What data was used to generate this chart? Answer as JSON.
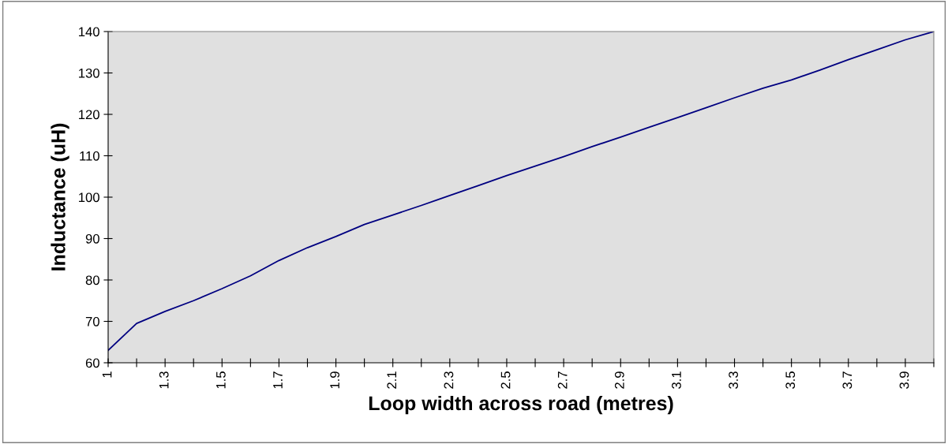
{
  "chart_data": {
    "type": "line",
    "xlabel": "Loop width across road (metres)",
    "ylabel": "Inductance (uH)",
    "categories": [
      "1",
      null,
      "1.3",
      null,
      "1.5",
      null,
      "1.7",
      null,
      "1.9",
      null,
      "2.1",
      null,
      "2.3",
      null,
      "2.5",
      null,
      "2.7",
      null,
      "2.9",
      null,
      "3.1",
      null,
      "3.3",
      null,
      "3.5",
      null,
      "3.7",
      null,
      "3.9",
      null
    ],
    "series": [
      {
        "color": "#000080",
        "values": [
          63,
          69.5,
          72.4,
          75,
          77.9,
          81,
          84.7,
          87.8,
          90.5,
          93.4,
          95.7,
          98,
          100.4,
          102.8,
          105.2,
          107.5,
          109.8,
          112.2,
          114.5,
          116.9,
          119.2,
          121.6,
          124,
          126.3,
          128.3,
          130.7,
          133.2,
          135.6,
          138,
          140
        ]
      }
    ],
    "ylim": [
      60,
      140
    ],
    "yticks": [
      60,
      70,
      80,
      90,
      100,
      110,
      120,
      130,
      140
    ],
    "grid": false,
    "marker": "none",
    "line_style": "solid"
  }
}
